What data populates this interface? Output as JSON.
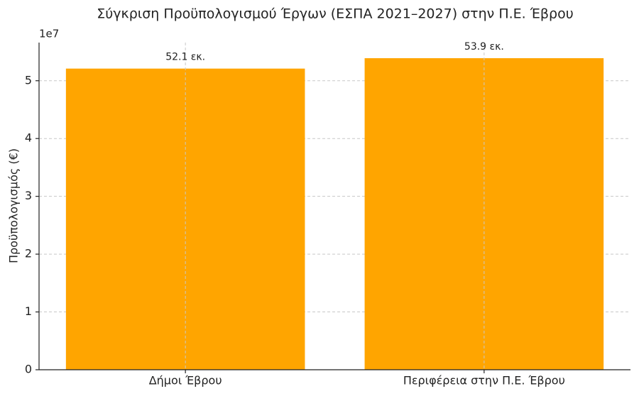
{
  "chart_data": {
    "type": "bar",
    "title": "Σύγκριση Προϋπολογισμού Έργων (ΕΣΠΑ 2021–2027) στην Π.Ε. Έβρου",
    "y_label": "Προϋπολογισμός (€)",
    "y_offset_label": "1e7",
    "categories": [
      "Δήμοι Έβρου",
      "Περιφέρεια στην Π.Ε. Έβρου"
    ],
    "values": [
      52100000,
      53900000
    ],
    "value_labels": [
      "52.1 εκ.",
      "53.9 εκ."
    ],
    "color": "#ffa500",
    "ylim": [
      0,
      56600000
    ],
    "yticks": [
      0,
      {
        "value": 10000000,
        "label": "1"
      },
      {
        "value": 20000000,
        "label": "2"
      },
      {
        "value": 30000000,
        "label": "3"
      },
      {
        "value": 40000000,
        "label": "4"
      },
      {
        "value": 50000000,
        "label": "5"
      }
    ],
    "grid": true
  }
}
